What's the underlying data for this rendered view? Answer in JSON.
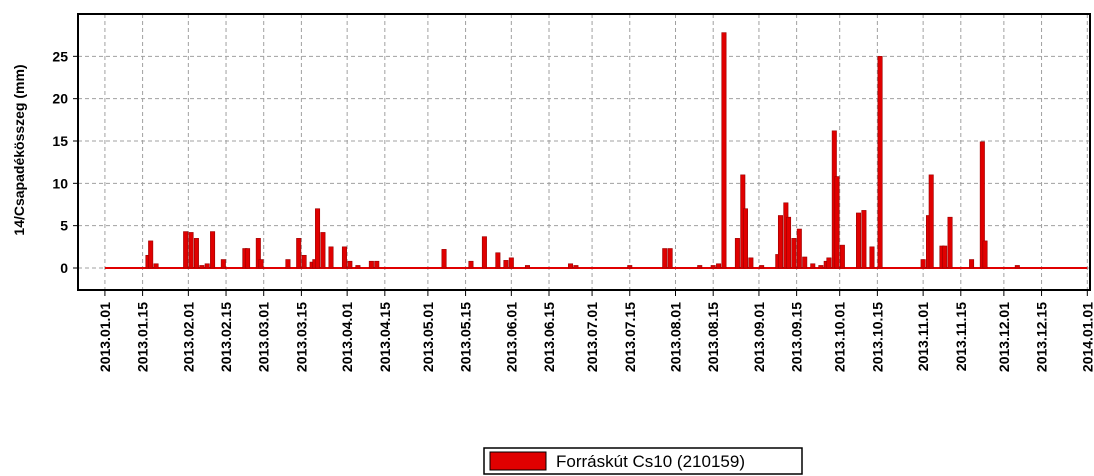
{
  "chart_data": {
    "type": "bar",
    "y_label": "14/Csapadékösszeg (mm)",
    "xlim": [
      "2012.12.22",
      "2014.01.02"
    ],
    "xticks": [
      "2013.01.01",
      "2013.01.15",
      "2013.02.01",
      "2013.02.15",
      "2013.03.01",
      "2013.03.15",
      "2013.04.01",
      "2013.04.15",
      "2013.05.01",
      "2013.05.15",
      "2013.06.01",
      "2013.06.15",
      "2013.07.01",
      "2013.07.15",
      "2013.08.01",
      "2013.08.15",
      "2013.09.01",
      "2013.09.15",
      "2013.10.01",
      "2013.10.15",
      "2013.11.01",
      "2013.11.15",
      "2013.12.01",
      "2013.12.15",
      "2014.01.01"
    ],
    "ylim": [
      -2.6,
      30
    ],
    "yticks": [
      0,
      5,
      10,
      15,
      20,
      25
    ],
    "grid": true,
    "legend": "bottom",
    "series": [
      {
        "name": "Forráskút Cs10 (210159)",
        "color": "#e00000",
        "x": [
          "2013.01.17",
          "2013.01.18",
          "2013.01.20",
          "2013.01.31",
          "2013.02.02",
          "2013.02.04",
          "2013.02.06",
          "2013.02.08",
          "2013.02.10",
          "2013.02.14",
          "2013.02.22",
          "2013.02.23",
          "2013.02.27",
          "2013.02.28",
          "2013.03.10",
          "2013.03.14",
          "2013.03.16",
          "2013.03.19",
          "2013.03.20",
          "2013.03.21",
          "2013.03.23",
          "2013.03.26",
          "2013.03.31",
          "2013.04.02",
          "2013.04.05",
          "2013.04.10",
          "2013.04.12",
          "2013.05.07",
          "2013.05.17",
          "2013.05.22",
          "2013.05.27",
          "2013.05.30",
          "2013.06.01",
          "2013.06.07",
          "2013.06.23",
          "2013.06.25",
          "2013.07.15",
          "2013.07.28",
          "2013.07.30",
          "2013.08.10",
          "2013.08.15",
          "2013.08.17",
          "2013.08.19",
          "2013.08.24",
          "2013.08.26",
          "2013.08.27",
          "2013.08.29",
          "2013.09.02",
          "2013.09.08",
          "2013.09.09",
          "2013.09.11",
          "2013.09.12",
          "2013.09.14",
          "2013.09.16",
          "2013.09.18",
          "2013.09.21",
          "2013.09.24",
          "2013.09.26",
          "2013.09.27",
          "2013.09.29",
          "2013.09.30",
          "2013.10.02",
          "2013.10.08",
          "2013.10.10",
          "2013.10.13",
          "2013.10.16",
          "2013.11.01",
          "2013.11.03",
          "2013.11.04",
          "2013.11.08",
          "2013.11.09",
          "2013.11.11",
          "2013.11.19",
          "2013.11.23",
          "2013.11.24",
          "2013.12.06"
        ],
        "values": [
          1.5,
          3.2,
          0.5,
          4.3,
          4.2,
          3.5,
          0.3,
          0.5,
          4.3,
          1.0,
          2.3,
          2.3,
          3.5,
          1.0,
          1.0,
          3.5,
          1.5,
          0.7,
          1.0,
          7.0,
          4.2,
          2.5,
          2.5,
          0.8,
          0.3,
          0.8,
          0.8,
          2.2,
          0.8,
          3.7,
          1.8,
          0.9,
          1.2,
          0.3,
          0.5,
          0.3,
          0.3,
          2.3,
          2.3,
          0.3,
          0.3,
          0.5,
          27.8,
          3.5,
          11.0,
          7.0,
          1.2,
          0.3,
          1.6,
          6.2,
          7.7,
          6.0,
          3.5,
          4.6,
          1.3,
          0.5,
          0.3,
          0.8,
          1.2,
          16.2,
          10.8,
          2.7,
          6.5,
          6.8,
          2.5,
          25.0,
          1.0,
          6.2,
          11.0,
          2.6,
          2.6,
          6.0,
          1.0,
          14.9,
          3.2,
          0.3
        ]
      }
    ]
  }
}
